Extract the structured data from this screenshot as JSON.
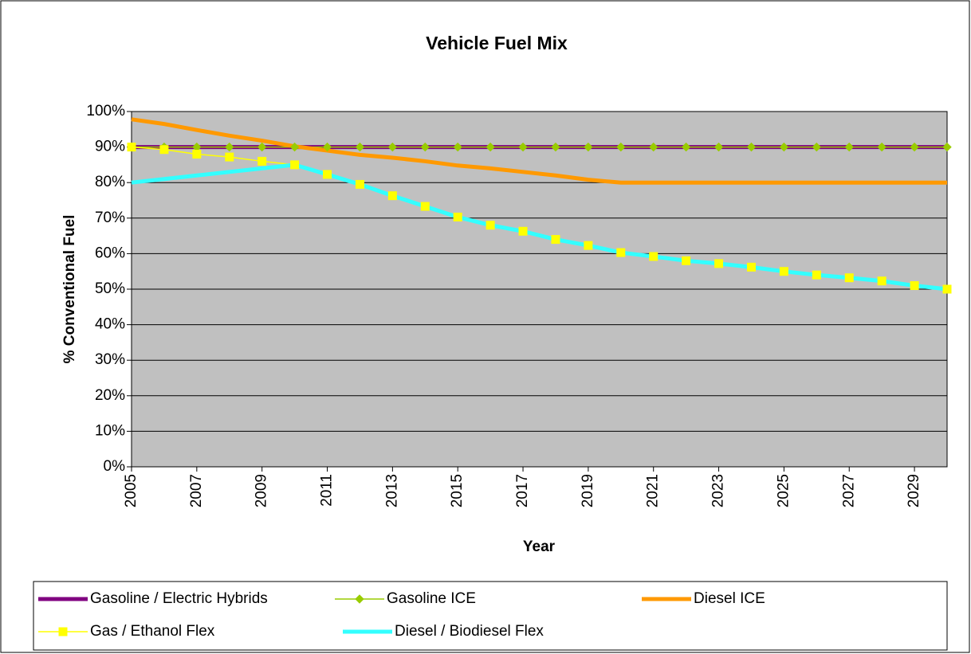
{
  "chart_data": {
    "type": "line",
    "title": "Vehicle Fuel Mix",
    "x_label": "Year",
    "y_label": "% Conventional Fuel",
    "x": [
      2005,
      2006,
      2007,
      2008,
      2009,
      2010,
      2011,
      2012,
      2013,
      2014,
      2015,
      2016,
      2017,
      2018,
      2019,
      2020,
      2021,
      2022,
      2023,
      2024,
      2025,
      2026,
      2027,
      2028,
      2029,
      2030
    ],
    "xlim": [
      2005,
      2030
    ],
    "xticks": [
      2005,
      2007,
      2009,
      2011,
      2013,
      2015,
      2017,
      2019,
      2021,
      2023,
      2025,
      2027,
      2029
    ],
    "ylim": [
      0,
      100
    ],
    "yticks": [
      {
        "value": 0,
        "label": "0%"
      },
      {
        "value": 10,
        "label": "10%"
      },
      {
        "value": 20,
        "label": "20%"
      },
      {
        "value": 30,
        "label": "30%"
      },
      {
        "value": 40,
        "label": "40%"
      },
      {
        "value": 50,
        "label": "50%"
      },
      {
        "value": 60,
        "label": "60%"
      },
      {
        "value": 70,
        "label": "70%"
      },
      {
        "value": 80,
        "label": "80%"
      },
      {
        "value": 90,
        "label": "90%"
      },
      {
        "value": 100,
        "label": "100%"
      }
    ],
    "grid": true,
    "background": "#c0c0c0",
    "legend": "bottom",
    "series": [
      {
        "name": "Gasoline / Electric Hybrids",
        "color": "#800080",
        "width": 5,
        "marker": null,
        "values": [
          90,
          90,
          90,
          90,
          90,
          90,
          90,
          90,
          90,
          90,
          90,
          90,
          90,
          90,
          90,
          90,
          90,
          90,
          90,
          90,
          90,
          90,
          90,
          90,
          90,
          90
        ]
      },
      {
        "name": "Gasoline ICE",
        "color": "#99cc00",
        "width": 1.5,
        "marker": "diamond",
        "values": [
          90,
          90,
          90,
          90,
          90,
          90,
          90,
          90,
          90,
          90,
          90,
          90,
          90,
          90,
          90,
          90,
          90,
          90,
          90,
          90,
          90,
          90,
          90,
          90,
          90,
          90
        ]
      },
      {
        "name": "Diesel ICE",
        "color": "#ff9900",
        "width": 5,
        "marker": null,
        "values": [
          97.8,
          96.5,
          94.8,
          93.2,
          91.8,
          90.2,
          89,
          87.8,
          87,
          86,
          84.8,
          84,
          83,
          82,
          80.8,
          80,
          80,
          80,
          80,
          80,
          80,
          80,
          80,
          80,
          80,
          80
        ]
      },
      {
        "name": "Gas / Ethanol Flex",
        "color": "#ffff00",
        "width": 1.5,
        "marker": "square",
        "values": [
          90,
          89.3,
          88,
          87.2,
          86,
          85,
          82.3,
          79.5,
          76.3,
          73.3,
          70.3,
          68,
          66.3,
          64,
          62.3,
          60.3,
          59.2,
          58,
          57.2,
          56.2,
          55,
          54,
          53.2,
          52.3,
          51,
          50
        ]
      },
      {
        "name": "Diesel / Biodiesel Flex",
        "color": "#33ffff",
        "width": 5,
        "marker": null,
        "values": [
          80,
          81,
          82,
          83,
          84,
          85,
          82.3,
          79.5,
          76.3,
          73.3,
          70.3,
          68,
          66.3,
          64,
          62.3,
          60.3,
          59.2,
          58,
          57.2,
          56.2,
          55,
          54,
          53.2,
          52.3,
          51,
          50
        ]
      }
    ]
  }
}
